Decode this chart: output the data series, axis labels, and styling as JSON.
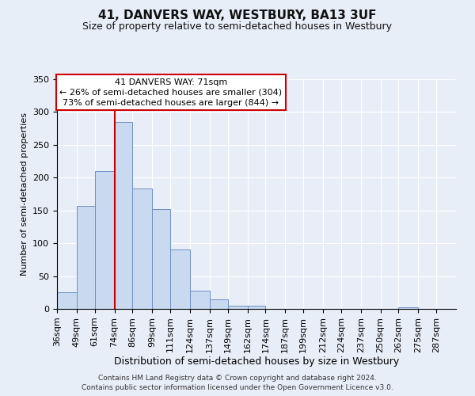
{
  "title": "41, DANVERS WAY, WESTBURY, BA13 3UF",
  "subtitle": "Size of property relative to semi-detached houses in Westbury",
  "xlabel": "Distribution of semi-detached houses by size in Westbury",
  "ylabel": "Number of semi-detached properties",
  "bin_labels": [
    "36sqm",
    "49sqm",
    "61sqm",
    "74sqm",
    "86sqm",
    "99sqm",
    "111sqm",
    "124sqm",
    "137sqm",
    "149sqm",
    "162sqm",
    "174sqm",
    "187sqm",
    "199sqm",
    "212sqm",
    "224sqm",
    "237sqm",
    "250sqm",
    "262sqm",
    "275sqm",
    "287sqm"
  ],
  "bar_values": [
    25,
    157,
    210,
    285,
    183,
    152,
    91,
    28,
    15,
    5,
    5,
    0,
    0,
    0,
    0,
    0,
    0,
    0,
    2,
    0,
    0
  ],
  "bar_color": "#c9d9f0",
  "bar_edge_color": "#7090c0",
  "bin_edges": [
    36,
    49,
    61,
    74,
    86,
    99,
    111,
    124,
    137,
    149,
    162,
    174,
    187,
    199,
    212,
    224,
    237,
    250,
    262,
    275,
    287,
    300
  ],
  "ylim": [
    0,
    350
  ],
  "yticks": [
    0,
    50,
    100,
    150,
    200,
    250,
    300,
    350
  ],
  "annotation_title": "41 DANVERS WAY: 71sqm",
  "annotation_line1": "← 26% of semi-detached houses are smaller (304)",
  "annotation_line2": "73% of semi-detached houses are larger (844) →",
  "annotation_box_facecolor": "#ffffff",
  "annotation_box_edgecolor": "#cc0000",
  "vline_color": "#cc0000",
  "vline_x": 74,
  "footer1": "Contains HM Land Registry data © Crown copyright and database right 2024.",
  "footer2": "Contains public sector information licensed under the Open Government Licence v3.0.",
  "background_color": "#e8eef8",
  "plot_bg_color": "#e8eef8",
  "title_fontsize": 11,
  "subtitle_fontsize": 9,
  "ylabel_fontsize": 8,
  "xlabel_fontsize": 9,
  "tick_fontsize": 8,
  "footer_fontsize": 6.5
}
